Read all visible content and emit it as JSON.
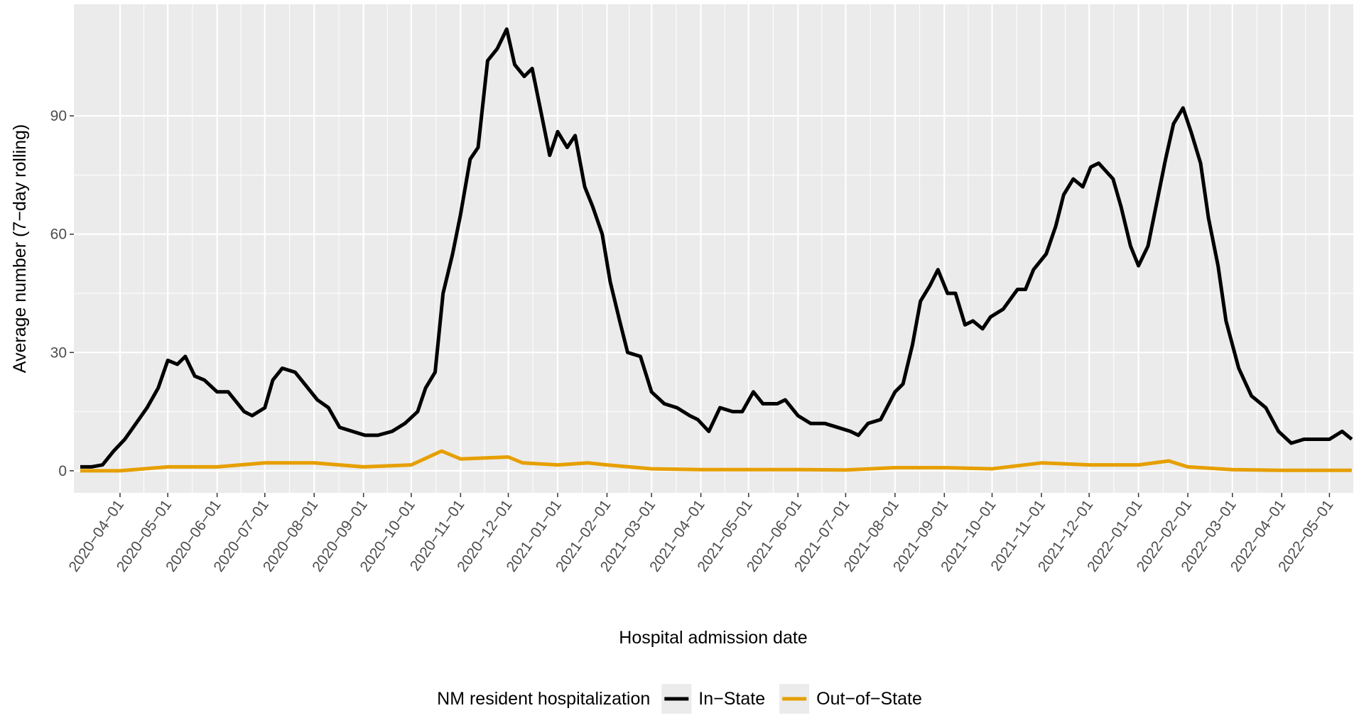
{
  "chart_data": {
    "type": "line",
    "x_label": "Hospital admission date",
    "y_label": "Average number (7−day rolling)",
    "legend_title": "NM resident hospitalization",
    "legend_position": "bottom",
    "grid": true,
    "xlim": [
      "2020-03-03",
      "2022-05-16"
    ],
    "ylim": [
      -5.6,
      118.3
    ],
    "yticks": [
      0,
      30,
      60,
      90
    ],
    "xticks": [
      {
        "value": "2020-04-01",
        "label": "2020−04−01"
      },
      {
        "value": "2020-05-01",
        "label": "2020−05−01"
      },
      {
        "value": "2020-06-01",
        "label": "2020−06−01"
      },
      {
        "value": "2020-07-01",
        "label": "2020−07−01"
      },
      {
        "value": "2020-08-01",
        "label": "2020−08−01"
      },
      {
        "value": "2020-09-01",
        "label": "2020−09−01"
      },
      {
        "value": "2020-10-01",
        "label": "2020−10−01"
      },
      {
        "value": "2020-11-01",
        "label": "2020−11−01"
      },
      {
        "value": "2020-12-01",
        "label": "2020−12−01"
      },
      {
        "value": "2021-01-01",
        "label": "2021−01−01"
      },
      {
        "value": "2021-02-01",
        "label": "2021−02−01"
      },
      {
        "value": "2021-03-01",
        "label": "2021−03−01"
      },
      {
        "value": "2021-04-01",
        "label": "2021−04−01"
      },
      {
        "value": "2021-05-01",
        "label": "2021−05−01"
      },
      {
        "value": "2021-06-01",
        "label": "2021−06−01"
      },
      {
        "value": "2021-07-01",
        "label": "2021−07−01"
      },
      {
        "value": "2021-08-01",
        "label": "2021−08−01"
      },
      {
        "value": "2021-09-01",
        "label": "2021−09−01"
      },
      {
        "value": "2021-10-01",
        "label": "2021−10−01"
      },
      {
        "value": "2021-11-01",
        "label": "2021−11−01"
      },
      {
        "value": "2021-12-01",
        "label": "2021−12−01"
      },
      {
        "value": "2022-01-01",
        "label": "2022−01−01"
      },
      {
        "value": "2022-02-01",
        "label": "2022−02−01"
      },
      {
        "value": "2022-03-01",
        "label": "2022−03−01"
      },
      {
        "value": "2022-04-01",
        "label": "2022−04−01"
      },
      {
        "value": "2022-05-01",
        "label": "2022−05−01"
      }
    ],
    "series": [
      {
        "name": "In−State",
        "color": "#000000",
        "x": [
          "2020-03-07",
          "2020-03-14",
          "2020-03-21",
          "2020-03-28",
          "2020-04-04",
          "2020-04-11",
          "2020-04-18",
          "2020-04-25",
          "2020-05-01",
          "2020-05-07",
          "2020-05-12",
          "2020-05-18",
          "2020-05-24",
          "2020-06-01",
          "2020-06-08",
          "2020-06-18",
          "2020-06-23",
          "2020-07-01",
          "2020-07-06",
          "2020-07-12",
          "2020-07-20",
          "2020-07-26",
          "2020-08-03",
          "2020-08-10",
          "2020-08-17",
          "2020-08-25",
          "2020-09-02",
          "2020-09-10",
          "2020-09-19",
          "2020-09-27",
          "2020-10-05",
          "2020-10-10",
          "2020-10-16",
          "2020-10-21",
          "2020-10-27",
          "2020-11-01",
          "2020-11-07",
          "2020-11-12",
          "2020-11-18",
          "2020-11-24",
          "2020-11-30",
          "2020-12-05",
          "2020-12-11",
          "2020-12-16",
          "2020-12-22",
          "2020-12-27",
          "2021-01-01",
          "2021-01-07",
          "2021-01-12",
          "2021-01-18",
          "2021-01-23",
          "2021-01-29",
          "2021-02-03",
          "2021-02-09",
          "2021-02-14",
          "2021-02-22",
          "2021-03-01",
          "2021-03-09",
          "2021-03-17",
          "2021-03-25",
          "2021-03-30",
          "2021-04-06",
          "2021-04-13",
          "2021-04-21",
          "2021-04-27",
          "2021-05-04",
          "2021-05-10",
          "2021-05-19",
          "2021-05-24",
          "2021-06-01",
          "2021-06-09",
          "2021-06-18",
          "2021-06-26",
          "2021-07-04",
          "2021-07-09",
          "2021-07-15",
          "2021-07-23",
          "2021-08-01",
          "2021-08-06",
          "2021-08-12",
          "2021-08-17",
          "2021-08-23",
          "2021-08-28",
          "2021-09-03",
          "2021-09-08",
          "2021-09-14",
          "2021-09-19",
          "2021-09-25",
          "2021-09-30",
          "2021-10-08",
          "2021-10-17",
          "2021-10-22",
          "2021-10-27",
          "2021-11-04",
          "2021-11-10",
          "2021-11-15",
          "2021-11-21",
          "2021-11-27",
          "2021-12-02",
          "2021-12-07",
          "2021-12-16",
          "2021-12-21",
          "2021-12-27",
          "2022-01-01",
          "2022-01-07",
          "2022-01-12",
          "2022-01-18",
          "2022-01-23",
          "2022-01-29",
          "2022-02-03",
          "2022-02-09",
          "2022-02-14",
          "2022-02-20",
          "2022-02-25",
          "2022-03-05",
          "2022-03-13",
          "2022-03-22",
          "2022-03-30",
          "2022-04-07",
          "2022-04-15",
          "2022-04-23",
          "2022-05-01",
          "2022-05-09",
          "2022-05-15"
        ],
        "values": [
          1,
          1,
          1.5,
          5,
          8,
          12,
          16,
          21,
          28,
          27,
          29,
          24,
          23,
          20,
          20,
          15,
          14,
          16,
          23,
          26,
          25,
          22,
          18,
          16,
          11,
          10,
          9,
          9,
          10,
          12,
          15,
          21,
          25,
          45,
          55,
          65,
          79,
          82,
          104,
          107,
          112,
          103,
          100,
          102,
          90,
          80,
          86,
          82,
          85,
          72,
          67,
          60,
          48,
          38,
          30,
          29,
          20,
          17,
          16,
          14,
          13,
          10,
          16,
          15,
          15,
          20,
          17,
          17,
          18,
          14,
          12,
          12,
          11,
          10,
          9,
          12,
          13,
          20,
          22,
          32,
          43,
          47,
          51,
          45,
          45,
          37,
          38,
          36,
          39,
          41,
          46,
          46,
          51,
          55,
          62,
          70,
          74,
          72,
          77,
          78,
          74,
          67,
          57,
          52,
          57,
          67,
          79,
          88,
          92,
          86,
          78,
          64,
          52,
          38,
          26,
          19,
          16,
          10,
          7,
          8,
          8,
          8,
          10,
          8
        ]
      },
      {
        "name": "Out−of−State",
        "color": "#E69F00",
        "x": [
          "2020-03-07",
          "2020-04-01",
          "2020-05-01",
          "2020-06-01",
          "2020-07-01",
          "2020-08-01",
          "2020-09-01",
          "2020-10-01",
          "2020-10-20",
          "2020-11-01",
          "2020-12-01",
          "2020-12-10",
          "2021-01-01",
          "2021-01-20",
          "2021-02-01",
          "2021-03-01",
          "2021-04-01",
          "2021-05-01",
          "2021-06-01",
          "2021-07-01",
          "2021-08-01",
          "2021-09-01",
          "2021-10-01",
          "2021-11-01",
          "2021-12-01",
          "2022-01-01",
          "2022-01-20",
          "2022-02-01",
          "2022-03-01",
          "2022-04-01",
          "2022-05-15"
        ],
        "values": [
          0,
          0,
          1,
          1,
          2,
          2,
          1,
          1.5,
          5,
          3,
          3.5,
          2,
          1.5,
          2,
          1.5,
          0.5,
          0.3,
          0.3,
          0.3,
          0.2,
          0.8,
          0.8,
          0.5,
          2,
          1.5,
          1.5,
          2.5,
          1,
          0.3,
          0.1,
          0.1
        ]
      }
    ]
  }
}
